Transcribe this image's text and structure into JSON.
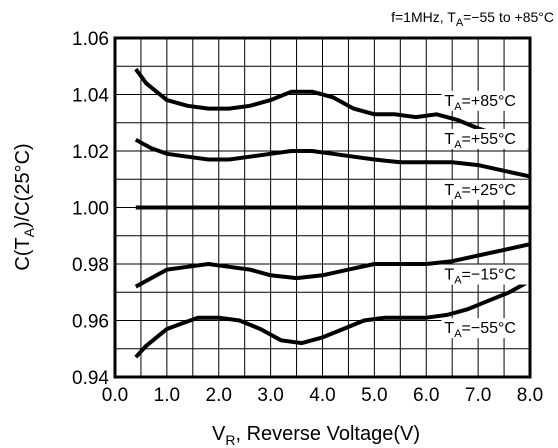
{
  "chart_data": {
    "type": "line",
    "title": "",
    "condition": {
      "prefix": "f=1MHz, T",
      "sub": "A",
      "suffix": "=−55 to +85°C"
    },
    "xlabel": {
      "main": "V",
      "sub": "R",
      "rest": ", Reverse Voltage(V)"
    },
    "ylabel": {
      "prefix": "C(T",
      "sub": "A",
      "suffix": ")/C(25°C)"
    },
    "xlim": [
      0.0,
      8.0
    ],
    "ylim": [
      0.94,
      1.06
    ],
    "x_ticks": [
      "0.0",
      "1.0",
      "2.0",
      "3.0",
      "4.0",
      "5.0",
      "6.0",
      "7.0",
      "8.0"
    ],
    "y_ticks": [
      "0.94",
      "0.96",
      "0.98",
      "1.00",
      "1.02",
      "1.04",
      "1.06"
    ],
    "grid": true,
    "series": [
      {
        "name": "T_A=+85°C",
        "label": {
          "prefix": "T",
          "sub": "A",
          "suffix": "=+85°C"
        },
        "points": [
          [
            0.4,
            1.049
          ],
          [
            0.6,
            1.044
          ],
          [
            0.8,
            1.041
          ],
          [
            1.0,
            1.038
          ],
          [
            1.4,
            1.036
          ],
          [
            1.8,
            1.035
          ],
          [
            2.2,
            1.035
          ],
          [
            2.6,
            1.036
          ],
          [
            3.0,
            1.038
          ],
          [
            3.4,
            1.041
          ],
          [
            3.8,
            1.041
          ],
          [
            4.2,
            1.039
          ],
          [
            4.6,
            1.035
          ],
          [
            5.0,
            1.033
          ],
          [
            5.4,
            1.033
          ],
          [
            5.8,
            1.032
          ],
          [
            6.2,
            1.033
          ],
          [
            6.6,
            1.031
          ],
          [
            7.0,
            1.028
          ],
          [
            7.5,
            1.025
          ],
          [
            8.0,
            1.021
          ]
        ]
      },
      {
        "name": "T_A=+55°C",
        "label": {
          "prefix": "T",
          "sub": "A",
          "suffix": "=+55°C"
        },
        "points": [
          [
            0.4,
            1.024
          ],
          [
            0.7,
            1.021
          ],
          [
            1.0,
            1.019
          ],
          [
            1.4,
            1.018
          ],
          [
            1.8,
            1.017
          ],
          [
            2.2,
            1.017
          ],
          [
            2.6,
            1.018
          ],
          [
            3.0,
            1.019
          ],
          [
            3.4,
            1.02
          ],
          [
            3.8,
            1.02
          ],
          [
            4.2,
            1.019
          ],
          [
            4.6,
            1.018
          ],
          [
            5.0,
            1.017
          ],
          [
            5.5,
            1.016
          ],
          [
            6.0,
            1.016
          ],
          [
            6.5,
            1.016
          ],
          [
            7.0,
            1.015
          ],
          [
            7.5,
            1.013
          ],
          [
            8.0,
            1.011
          ]
        ]
      },
      {
        "name": "T_A=+25°C",
        "label": {
          "prefix": "T",
          "sub": "A",
          "suffix": "=+25°C"
        },
        "points": [
          [
            0.4,
            1.0
          ],
          [
            8.0,
            1.0
          ]
        ]
      },
      {
        "name": "T_A=−15°C",
        "label": {
          "prefix": "T",
          "sub": "A",
          "suffix": "=−15°C"
        },
        "points": [
          [
            0.4,
            0.972
          ],
          [
            0.7,
            0.975
          ],
          [
            1.0,
            0.978
          ],
          [
            1.4,
            0.979
          ],
          [
            1.8,
            0.98
          ],
          [
            2.2,
            0.979
          ],
          [
            2.6,
            0.978
          ],
          [
            3.0,
            0.976
          ],
          [
            3.5,
            0.975
          ],
          [
            4.0,
            0.976
          ],
          [
            4.5,
            0.978
          ],
          [
            5.0,
            0.98
          ],
          [
            5.5,
            0.98
          ],
          [
            6.0,
            0.98
          ],
          [
            6.5,
            0.981
          ],
          [
            7.0,
            0.983
          ],
          [
            7.5,
            0.985
          ],
          [
            8.0,
            0.987
          ]
        ]
      },
      {
        "name": "T_A=−55°C",
        "label": {
          "prefix": "T",
          "sub": "A",
          "suffix": "=−55°C"
        },
        "points": [
          [
            0.4,
            0.947
          ],
          [
            0.6,
            0.951
          ],
          [
            0.8,
            0.954
          ],
          [
            1.0,
            0.957
          ],
          [
            1.3,
            0.959
          ],
          [
            1.6,
            0.961
          ],
          [
            2.0,
            0.961
          ],
          [
            2.4,
            0.96
          ],
          [
            2.8,
            0.957
          ],
          [
            3.2,
            0.953
          ],
          [
            3.6,
            0.952
          ],
          [
            4.0,
            0.954
          ],
          [
            4.4,
            0.957
          ],
          [
            4.8,
            0.96
          ],
          [
            5.2,
            0.961
          ],
          [
            5.6,
            0.961
          ],
          [
            6.0,
            0.961
          ],
          [
            6.4,
            0.962
          ],
          [
            6.8,
            0.964
          ],
          [
            7.2,
            0.967
          ],
          [
            7.6,
            0.97
          ],
          [
            8.0,
            0.974
          ]
        ]
      }
    ]
  }
}
